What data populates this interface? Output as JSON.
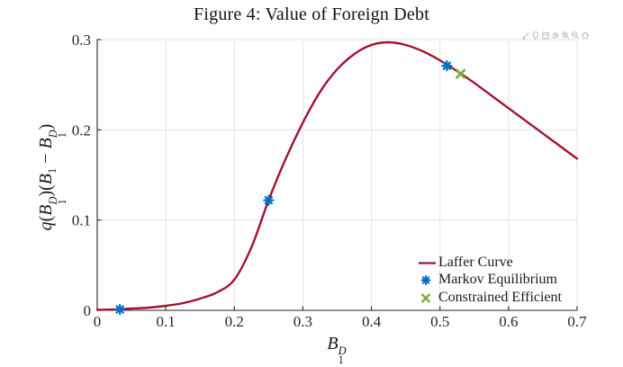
{
  "title": "Figure 4: Value of Foreign Debt",
  "colors": {
    "laffer_curve": "#A2142F",
    "markov_equilibrium": "#0072BD",
    "constrained_efficient": "#77AC30",
    "grid": "#E3E3E3",
    "axis": "#262626",
    "tick_label": "#262626",
    "toolbar_icon": "#BDBDBD"
  },
  "toolbar": {
    "icons": [
      "brush-icon",
      "datatip-icon",
      "export-icon",
      "pan-icon",
      "zoom-in-icon",
      "zoom-out-icon",
      "home-icon"
    ]
  },
  "chart_data": {
    "type": "line",
    "title": "Figure 4: Value of Foreign Debt",
    "xlabel": "B_1^D",
    "ylabel": "q(B_1^D)(B_1 - B_1^D)",
    "xlim": [
      0,
      0.7
    ],
    "ylim": [
      0,
      0.3
    ],
    "xticks": [
      0,
      0.1,
      0.2,
      0.3,
      0.4,
      0.5,
      0.6,
      0.7
    ],
    "xtick_labels": [
      "0",
      "0.1",
      "0.2",
      "0.3",
      "0.4",
      "0.5",
      "0.6",
      "0.7"
    ],
    "yticks": [
      0,
      0.1,
      0.2,
      0.3
    ],
    "ytick_labels": [
      "0",
      "0.1",
      "0.2",
      "0.3"
    ],
    "grid": true,
    "legend_position": "southeast",
    "series": [
      {
        "name": "Laffer Curve",
        "type": "line",
        "color": "#A2142F",
        "x": [
          0,
          0.025,
          0.05,
          0.075,
          0.1,
          0.125,
          0.15,
          0.175,
          0.2,
          0.225,
          0.25,
          0.275,
          0.3,
          0.325,
          0.35,
          0.375,
          0.4,
          0.425,
          0.45,
          0.475,
          0.5,
          0.525,
          0.55,
          0.575,
          0.6,
          0.625,
          0.65,
          0.675,
          0.7
        ],
        "y": [
          0.0005,
          0.001,
          0.002,
          0.003,
          0.005,
          0.008,
          0.013,
          0.02,
          0.034,
          0.07,
          0.122,
          0.168,
          0.208,
          0.242,
          0.267,
          0.284,
          0.294,
          0.297,
          0.294,
          0.287,
          0.277,
          0.265,
          0.252,
          0.238,
          0.224,
          0.21,
          0.196,
          0.182,
          0.168
        ]
      },
      {
        "name": "Markov Equilibrium",
        "type": "scatter",
        "marker": "asterisk",
        "color": "#0072BD",
        "x": [
          0.033,
          0.25,
          0.51
        ],
        "y": [
          0.001,
          0.122,
          0.271
        ]
      },
      {
        "name": "Constrained Efficient",
        "type": "scatter",
        "marker": "x",
        "color": "#77AC30",
        "x": [
          0.53
        ],
        "y": [
          0.262
        ]
      }
    ],
    "xlabel_parts": [
      {
        "text": "B",
        "italic": true
      },
      {
        "sup": "D",
        "sub": "1"
      }
    ],
    "ylabel_parts": [
      {
        "text": "q",
        "italic": true
      },
      {
        "text": "("
      },
      {
        "text": "B",
        "italic": true
      },
      {
        "sup": "D",
        "sub": "1"
      },
      {
        "text": ")("
      },
      {
        "text": "B",
        "italic": true
      },
      {
        "sub": "1"
      },
      {
        "text": " − "
      },
      {
        "text": "B",
        "italic": true
      },
      {
        "sup": "D",
        "sub": "1"
      },
      {
        "text": ")"
      }
    ]
  }
}
